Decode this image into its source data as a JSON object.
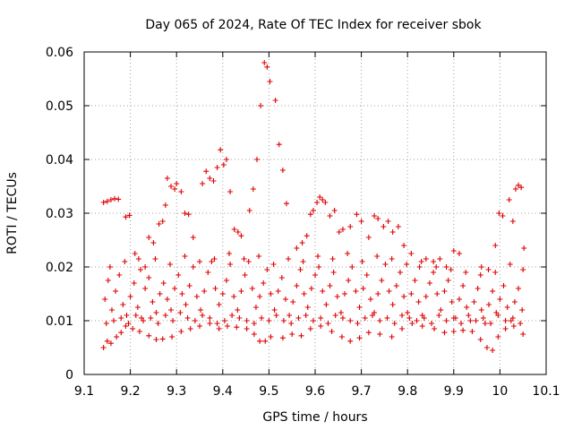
{
  "chart_data": {
    "type": "scatter",
    "title": "Day 065 of 2024, Rate Of TEC Index for receiver sbok",
    "xlabel": "GPS time / hours",
    "ylabel": "ROTI / TECUs",
    "xlim": [
      9.1,
      10.1
    ],
    "ylim": [
      0,
      0.06
    ],
    "xticks": [
      "9.1",
      "9.2",
      "9.3",
      "9.4",
      "9.5",
      "9.6",
      "9.7",
      "9.8",
      "9.9",
      "10",
      "10.1"
    ],
    "yticks": [
      "0",
      "0.01",
      "0.02",
      "0.03",
      "0.04",
      "0.05",
      "0.06"
    ],
    "grid": true,
    "marker": "+",
    "color": "#dd0000",
    "points": [
      [
        9.142,
        0.032
      ],
      [
        9.15,
        0.0322
      ],
      [
        9.158,
        0.0325
      ],
      [
        9.166,
        0.0327
      ],
      [
        9.174,
        0.0326
      ],
      [
        9.19,
        0.0293
      ],
      [
        9.198,
        0.0296
      ],
      [
        9.21,
        0.0225
      ],
      [
        9.218,
        0.0215
      ],
      [
        9.232,
        0.02
      ],
      [
        9.24,
        0.0255
      ],
      [
        9.25,
        0.0245
      ],
      [
        9.262,
        0.028
      ],
      [
        9.27,
        0.0285
      ],
      [
        9.276,
        0.0315
      ],
      [
        9.28,
        0.0365
      ],
      [
        9.288,
        0.035
      ],
      [
        9.296,
        0.0345
      ],
      [
        9.3,
        0.0355
      ],
      [
        9.31,
        0.034
      ],
      [
        9.318,
        0.03
      ],
      [
        9.326,
        0.0298
      ],
      [
        9.336,
        0.0255
      ],
      [
        9.356,
        0.0355
      ],
      [
        9.364,
        0.0378
      ],
      [
        9.372,
        0.0365
      ],
      [
        9.38,
        0.036
      ],
      [
        9.388,
        0.0385
      ],
      [
        9.395,
        0.0418
      ],
      [
        9.402,
        0.039
      ],
      [
        9.408,
        0.04
      ],
      [
        9.416,
        0.034
      ],
      [
        9.425,
        0.027
      ],
      [
        9.433,
        0.0265
      ],
      [
        9.44,
        0.0258
      ],
      [
        9.458,
        0.0305
      ],
      [
        9.466,
        0.0345
      ],
      [
        9.474,
        0.04
      ],
      [
        9.482,
        0.05
      ],
      [
        9.49,
        0.058
      ],
      [
        9.496,
        0.0572
      ],
      [
        9.502,
        0.0545
      ],
      [
        9.514,
        0.051
      ],
      [
        9.522,
        0.0428
      ],
      [
        9.53,
        0.038
      ],
      [
        9.538,
        0.0318
      ],
      [
        9.56,
        0.0235
      ],
      [
        9.572,
        0.0245
      ],
      [
        9.582,
        0.0258
      ],
      [
        9.59,
        0.0298
      ],
      [
        9.596,
        0.0305
      ],
      [
        9.604,
        0.032
      ],
      [
        9.61,
        0.033
      ],
      [
        9.616,
        0.0325
      ],
      [
        9.622,
        0.032
      ],
      [
        9.632,
        0.0295
      ],
      [
        9.642,
        0.0305
      ],
      [
        9.652,
        0.0265
      ],
      [
        9.66,
        0.027
      ],
      [
        9.676,
        0.0275
      ],
      [
        9.69,
        0.0298
      ],
      [
        9.7,
        0.0285
      ],
      [
        9.716,
        0.0255
      ],
      [
        9.728,
        0.0295
      ],
      [
        9.736,
        0.029
      ],
      [
        9.748,
        0.0275
      ],
      [
        9.758,
        0.0285
      ],
      [
        9.768,
        0.0265
      ],
      [
        9.78,
        0.0275
      ],
      [
        9.792,
        0.024
      ],
      [
        9.808,
        0.0225
      ],
      [
        9.826,
        0.02
      ],
      [
        9.84,
        0.0215
      ],
      [
        9.856,
        0.021
      ],
      [
        9.87,
        0.0215
      ],
      [
        9.884,
        0.02
      ],
      [
        9.9,
        0.023
      ],
      [
        9.912,
        0.0225
      ],
      [
        9.96,
        0.02
      ],
      [
        9.975,
        0.0195
      ],
      [
        9.99,
        0.024
      ],
      [
        9.998,
        0.03
      ],
      [
        10.006,
        0.0295
      ],
      [
        10.02,
        0.0325
      ],
      [
        10.028,
        0.0285
      ],
      [
        10.034,
        0.0345
      ],
      [
        10.04,
        0.0352
      ],
      [
        10.046,
        0.0348
      ],
      [
        10.052,
        0.0235
      ],
      [
        9.142,
        0.005
      ],
      [
        9.15,
        0.0062
      ],
      [
        9.158,
        0.0058
      ],
      [
        9.17,
        0.007
      ],
      [
        9.18,
        0.0078
      ],
      [
        9.19,
        0.009
      ],
      [
        9.205,
        0.0085
      ],
      [
        9.22,
        0.008
      ],
      [
        9.24,
        0.0072
      ],
      [
        9.256,
        0.0065
      ],
      [
        9.27,
        0.0066
      ],
      [
        9.29,
        0.007
      ],
      [
        9.31,
        0.008
      ],
      [
        9.33,
        0.0085
      ],
      [
        9.35,
        0.009
      ],
      [
        9.372,
        0.0095
      ],
      [
        9.392,
        0.0085
      ],
      [
        9.41,
        0.009
      ],
      [
        9.43,
        0.0088
      ],
      [
        9.452,
        0.0085
      ],
      [
        9.468,
        0.0075
      ],
      [
        9.48,
        0.0062
      ],
      [
        9.492,
        0.0062
      ],
      [
        9.504,
        0.007
      ],
      [
        9.53,
        0.0068
      ],
      [
        9.55,
        0.0075
      ],
      [
        9.57,
        0.0072
      ],
      [
        9.59,
        0.0085
      ],
      [
        9.612,
        0.009
      ],
      [
        9.636,
        0.008
      ],
      [
        9.658,
        0.007
      ],
      [
        9.676,
        0.0062
      ],
      [
        9.696,
        0.0068
      ],
      [
        9.716,
        0.0078
      ],
      [
        9.74,
        0.0075
      ],
      [
        9.766,
        0.007
      ],
      [
        9.788,
        0.0085
      ],
      [
        9.81,
        0.0095
      ],
      [
        9.832,
        0.009
      ],
      [
        9.858,
        0.0085
      ],
      [
        9.88,
        0.0078
      ],
      [
        9.9,
        0.008
      ],
      [
        9.92,
        0.0082
      ],
      [
        9.94,
        0.008
      ],
      [
        9.958,
        0.0065
      ],
      [
        9.972,
        0.005
      ],
      [
        9.984,
        0.0045
      ],
      [
        9.996,
        0.007
      ],
      [
        10.012,
        0.0085
      ],
      [
        10.03,
        0.009
      ],
      [
        10.05,
        0.0075
      ],
      [
        9.145,
        0.014
      ],
      [
        9.152,
        0.0175
      ],
      [
        9.16,
        0.012
      ],
      [
        9.168,
        0.0155
      ],
      [
        9.176,
        0.0185
      ],
      [
        9.184,
        0.013
      ],
      [
        9.192,
        0.011
      ],
      [
        9.2,
        0.0145
      ],
      [
        9.208,
        0.017
      ],
      [
        9.216,
        0.0125
      ],
      [
        9.224,
        0.0105
      ],
      [
        9.232,
        0.016
      ],
      [
        9.24,
        0.018
      ],
      [
        9.248,
        0.0135
      ],
      [
        9.256,
        0.0115
      ],
      [
        9.264,
        0.015
      ],
      [
        9.272,
        0.017
      ],
      [
        9.28,
        0.014
      ],
      [
        9.288,
        0.012
      ],
      [
        9.296,
        0.016
      ],
      [
        9.304,
        0.0185
      ],
      [
        9.312,
        0.015
      ],
      [
        9.32,
        0.013
      ],
      [
        9.328,
        0.0165
      ],
      [
        9.336,
        0.02
      ],
      [
        9.344,
        0.0145
      ],
      [
        9.352,
        0.012
      ],
      [
        9.36,
        0.0155
      ],
      [
        9.368,
        0.019
      ],
      [
        9.376,
        0.021
      ],
      [
        9.384,
        0.016
      ],
      [
        9.392,
        0.013
      ],
      [
        9.4,
        0.015
      ],
      [
        9.408,
        0.0175
      ],
      [
        9.416,
        0.0205
      ],
      [
        9.424,
        0.0145
      ],
      [
        9.432,
        0.012
      ],
      [
        9.44,
        0.0155
      ],
      [
        9.448,
        0.0185
      ],
      [
        9.456,
        0.021
      ],
      [
        9.464,
        0.016
      ],
      [
        9.472,
        0.0125
      ],
      [
        9.48,
        0.0145
      ],
      [
        9.488,
        0.017
      ],
      [
        9.496,
        0.0195
      ],
      [
        9.504,
        0.015
      ],
      [
        9.512,
        0.012
      ],
      [
        9.52,
        0.0155
      ],
      [
        9.528,
        0.018
      ],
      [
        9.536,
        0.014
      ],
      [
        9.544,
        0.011
      ],
      [
        9.552,
        0.0135
      ],
      [
        9.56,
        0.0165
      ],
      [
        9.568,
        0.0195
      ],
      [
        9.576,
        0.015
      ],
      [
        9.584,
        0.0125
      ],
      [
        9.592,
        0.016
      ],
      [
        9.6,
        0.0185
      ],
      [
        9.608,
        0.02
      ],
      [
        9.616,
        0.0155
      ],
      [
        9.624,
        0.013
      ],
      [
        9.632,
        0.0165
      ],
      [
        9.64,
        0.019
      ],
      [
        9.648,
        0.0145
      ],
      [
        9.656,
        0.0115
      ],
      [
        9.664,
        0.015
      ],
      [
        9.672,
        0.0175
      ],
      [
        9.68,
        0.02
      ],
      [
        9.688,
        0.0155
      ],
      [
        9.696,
        0.0125
      ],
      [
        9.704,
        0.016
      ],
      [
        9.712,
        0.0185
      ],
      [
        9.72,
        0.014
      ],
      [
        9.728,
        0.0115
      ],
      [
        9.736,
        0.015
      ],
      [
        9.744,
        0.0175
      ],
      [
        9.752,
        0.0205
      ],
      [
        9.76,
        0.0155
      ],
      [
        9.768,
        0.013
      ],
      [
        9.776,
        0.0165
      ],
      [
        9.784,
        0.019
      ],
      [
        9.792,
        0.0145
      ],
      [
        9.8,
        0.0115
      ],
      [
        9.808,
        0.015
      ],
      [
        9.816,
        0.0175
      ],
      [
        9.824,
        0.0135
      ],
      [
        9.832,
        0.011
      ],
      [
        9.84,
        0.0145
      ],
      [
        9.848,
        0.017
      ],
      [
        9.856,
        0.019
      ],
      [
        9.864,
        0.015
      ],
      [
        9.872,
        0.012
      ],
      [
        9.88,
        0.0155
      ],
      [
        9.888,
        0.0175
      ],
      [
        9.896,
        0.0135
      ],
      [
        9.904,
        0.0105
      ],
      [
        9.912,
        0.014
      ],
      [
        9.92,
        0.0165
      ],
      [
        9.928,
        0.0125
      ],
      [
        9.936,
        0.01
      ],
      [
        9.944,
        0.0135
      ],
      [
        9.952,
        0.016
      ],
      [
        9.96,
        0.012
      ],
      [
        9.968,
        0.0095
      ],
      [
        9.976,
        0.013
      ],
      [
        9.984,
        0.0155
      ],
      [
        9.992,
        0.0115
      ],
      [
        10.0,
        0.014
      ],
      [
        10.008,
        0.0165
      ],
      [
        10.016,
        0.0125
      ],
      [
        10.024,
        0.01
      ],
      [
        10.032,
        0.0135
      ],
      [
        10.04,
        0.016
      ],
      [
        10.048,
        0.012
      ],
      [
        9.148,
        0.0095
      ],
      [
        9.164,
        0.01
      ],
      [
        9.18,
        0.0105
      ],
      [
        9.196,
        0.0095
      ],
      [
        9.212,
        0.011
      ],
      [
        9.228,
        0.01
      ],
      [
        9.244,
        0.0105
      ],
      [
        9.26,
        0.0095
      ],
      [
        9.276,
        0.011
      ],
      [
        9.292,
        0.01
      ],
      [
        9.308,
        0.0115
      ],
      [
        9.324,
        0.0105
      ],
      [
        9.34,
        0.01
      ],
      [
        9.356,
        0.011
      ],
      [
        9.372,
        0.0105
      ],
      [
        9.388,
        0.0095
      ],
      [
        9.404,
        0.01
      ],
      [
        9.42,
        0.011
      ],
      [
        9.436,
        0.0105
      ],
      [
        9.452,
        0.01
      ],
      [
        9.468,
        0.0095
      ],
      [
        9.484,
        0.0105
      ],
      [
        9.5,
        0.01
      ],
      [
        9.516,
        0.011
      ],
      [
        9.532,
        0.01
      ],
      [
        9.548,
        0.0095
      ],
      [
        9.564,
        0.0105
      ],
      [
        9.58,
        0.011
      ],
      [
        9.596,
        0.01
      ],
      [
        9.612,
        0.0105
      ],
      [
        9.628,
        0.0095
      ],
      [
        9.644,
        0.011
      ],
      [
        9.66,
        0.0105
      ],
      [
        9.676,
        0.01
      ],
      [
        9.692,
        0.0095
      ],
      [
        9.708,
        0.0105
      ],
      [
        9.724,
        0.011
      ],
      [
        9.74,
        0.01
      ],
      [
        9.756,
        0.0105
      ],
      [
        9.772,
        0.0095
      ],
      [
        9.788,
        0.011
      ],
      [
        9.804,
        0.0105
      ],
      [
        9.82,
        0.01
      ],
      [
        9.836,
        0.0105
      ],
      [
        9.852,
        0.0095
      ],
      [
        9.868,
        0.011
      ],
      [
        9.884,
        0.01
      ],
      [
        9.9,
        0.0105
      ],
      [
        9.916,
        0.0095
      ],
      [
        9.932,
        0.011
      ],
      [
        9.948,
        0.01
      ],
      [
        9.964,
        0.0105
      ],
      [
        9.98,
        0.0095
      ],
      [
        9.996,
        0.011
      ],
      [
        10.012,
        0.01
      ],
      [
        10.028,
        0.0105
      ],
      [
        10.044,
        0.0095
      ],
      [
        9.156,
        0.02
      ],
      [
        9.188,
        0.021
      ],
      [
        9.222,
        0.0195
      ],
      [
        9.254,
        0.0215
      ],
      [
        9.286,
        0.0205
      ],
      [
        9.318,
        0.022
      ],
      [
        9.35,
        0.021
      ],
      [
        9.382,
        0.0215
      ],
      [
        9.414,
        0.0225
      ],
      [
        9.446,
        0.0215
      ],
      [
        9.478,
        0.022
      ],
      [
        9.51,
        0.0205
      ],
      [
        9.542,
        0.0215
      ],
      [
        9.574,
        0.021
      ],
      [
        9.606,
        0.022
      ],
      [
        9.638,
        0.0215
      ],
      [
        9.67,
        0.0225
      ],
      [
        9.702,
        0.021
      ],
      [
        9.734,
        0.022
      ],
      [
        9.766,
        0.0215
      ],
      [
        9.798,
        0.0205
      ],
      [
        9.83,
        0.021
      ],
      [
        9.862,
        0.02
      ],
      [
        9.894,
        0.0195
      ],
      [
        9.926,
        0.019
      ],
      [
        9.958,
        0.0185
      ],
      [
        9.99,
        0.019
      ],
      [
        10.022,
        0.0205
      ],
      [
        10.05,
        0.0195
      ]
    ]
  }
}
